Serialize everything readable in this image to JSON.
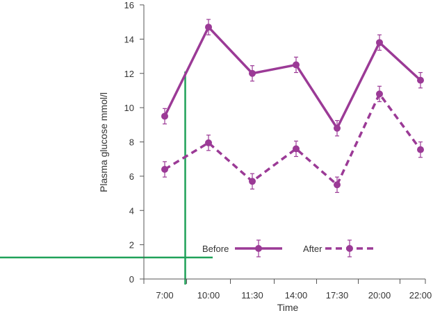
{
  "chart_data": {
    "type": "line",
    "xlabel": "Time",
    "ylabel": "Plasma glucose mmol/l",
    "categories": [
      "7:00",
      "10:00",
      "11:30",
      "14:00",
      "17:30",
      "20:00",
      "22:00"
    ],
    "ylim": [
      0,
      16
    ],
    "yticks": [
      0,
      2,
      4,
      6,
      8,
      10,
      12,
      14,
      16
    ],
    "grid": false,
    "legend": "bottom-center",
    "series": [
      {
        "name": "Before",
        "style": "solid",
        "color": "#9b3a96",
        "values": [
          9.5,
          14.7,
          12.0,
          12.5,
          8.8,
          13.8,
          11.6
        ],
        "error": [
          0.45,
          0.45,
          0.45,
          0.45,
          0.45,
          0.45,
          0.45
        ]
      },
      {
        "name": "After",
        "style": "dashed",
        "color": "#9b3a96",
        "values": [
          6.4,
          7.95,
          5.7,
          7.6,
          5.5,
          10.8,
          7.55
        ],
        "error": [
          0.45,
          0.45,
          0.45,
          0.45,
          0.45,
          0.45,
          0.45
        ]
      }
    ],
    "annotation_color": "#1fa159"
  }
}
